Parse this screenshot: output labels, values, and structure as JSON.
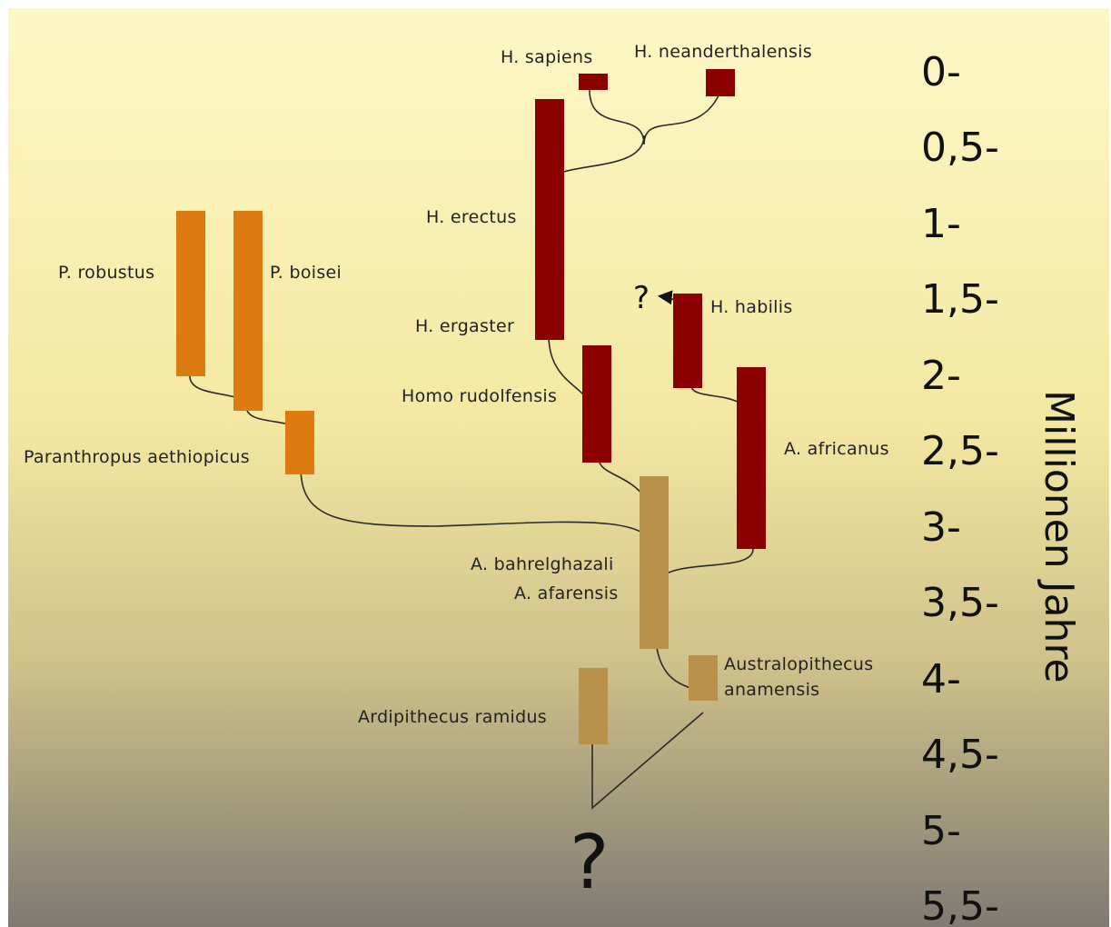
{
  "colors": {
    "homo": "#8b0000",
    "paranthropus": "#dd7a10",
    "australopithecus": "#b9914b",
    "background_top": "#fdf7c6",
    "background_bottom": "#807a72"
  },
  "axis": {
    "title": "Millionen Jahre",
    "ticks": [
      "0-",
      "0,5-",
      "1-",
      "1,5-",
      "2-",
      "2,5-",
      "3-",
      "3,5-",
      "4-",
      "4,5-",
      "5-",
      "5,5-"
    ]
  },
  "species": {
    "sapiens": "H. sapiens",
    "neanderthalensis": "H. neanderthalensis",
    "erectus": "H. erectus",
    "ergaster": "H. ergaster",
    "habilis": "H. habilis",
    "rudolfensis": "Homo rudolfensis",
    "africanus": "A. africanus",
    "robustus": "P. robustus",
    "boisei": "P. boisei",
    "aethiopicus": "Paranthropus aethiopicus",
    "bahrelghazali": "A. bahrelghazali",
    "afarensis": "A. afarensis",
    "anamensis_line1": "Australopithecus",
    "anamensis_line2": "anamensis",
    "ramidus": "Ardipithecus ramidus"
  },
  "unknown_origin_mark": "?",
  "habilis_unknown_mark": "?"
}
